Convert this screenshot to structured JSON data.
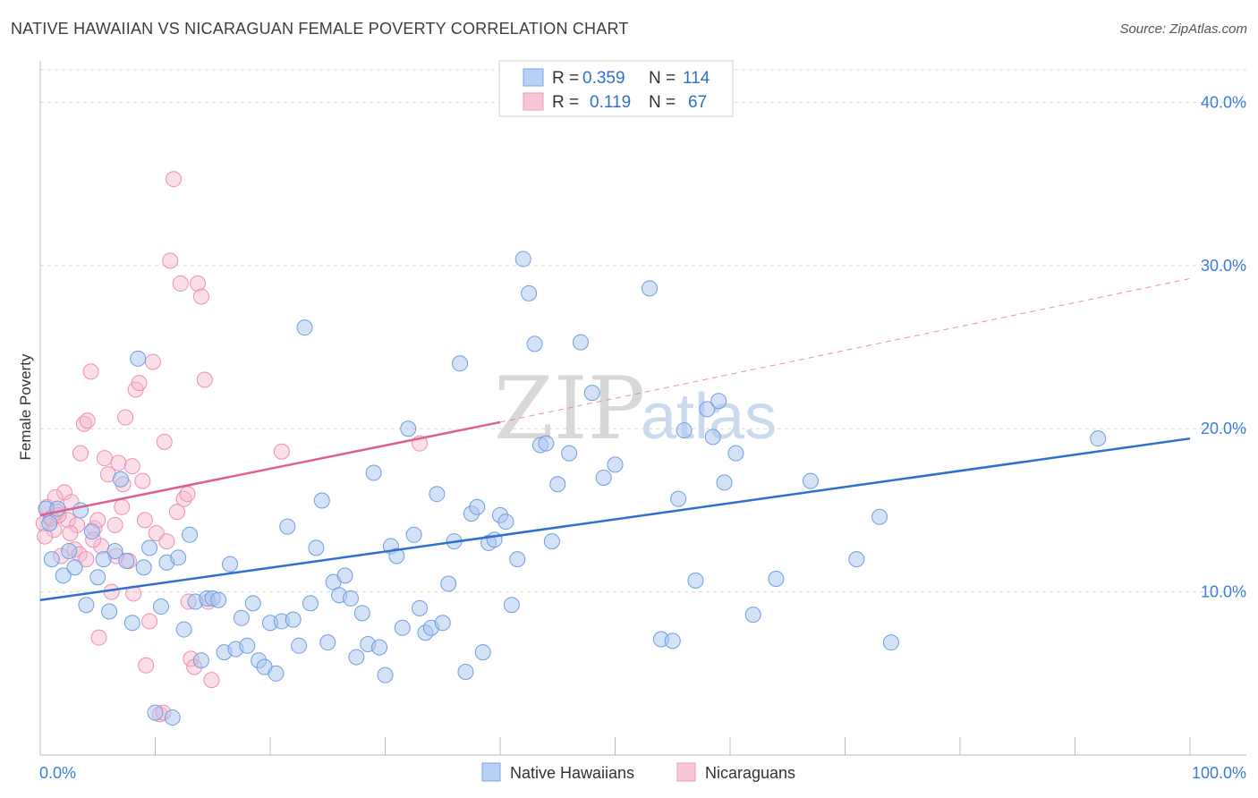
{
  "title": "NATIVE HAWAIIAN VS NICARAGUAN FEMALE POVERTY CORRELATION CHART",
  "source": "Source: ZipAtlas.com",
  "watermark": {
    "zip": "ZIP",
    "atlas": "atlas"
  },
  "colors": {
    "blue_fill": "#a9c6f0",
    "blue_stroke": "#6f9fe0",
    "blue_line": "#2f6fd0",
    "pink_fill": "#f6b8cc",
    "pink_stroke": "#ee8fb0",
    "pink_line": "#e0608a",
    "grid": "#d8d8d8",
    "axis": "#bbbbbb"
  },
  "legend": {
    "row1": {
      "r_label": "R = ",
      "r_value": "0.359",
      "n_label": "N = ",
      "n_value": "114"
    },
    "row2": {
      "r_label": "R = ",
      "r_value": "0.119",
      "n_label": "N = ",
      "n_value": "67"
    }
  },
  "bottom_legend": {
    "series1": "Native Hawaiians",
    "series2": "Nicaraguans"
  },
  "chart_data": {
    "type": "scatter",
    "title": "NATIVE HAWAIIAN VS NICARAGUAN FEMALE POVERTY CORRELATION CHART",
    "xlabel": "",
    "ylabel": "Female Poverty",
    "xlim": [
      0,
      100
    ],
    "ylim": [
      0,
      42
    ],
    "x_tick_labels": [
      "0.0%",
      "100.0%"
    ],
    "y_ticks": [
      10,
      20,
      30,
      40
    ],
    "y_tick_labels": [
      "10.0%",
      "20.0%",
      "30.0%",
      "40.0%"
    ],
    "grid": true,
    "series": [
      {
        "name": "Native Hawaiians",
        "r": 0.359,
        "n": 114,
        "trend": {
          "x0": 0,
          "y0": 9.5,
          "x1": 100,
          "y1": 19.4,
          "style": "solid"
        },
        "points": [
          [
            0.5,
            15.1
          ],
          [
            1,
            12
          ],
          [
            1.5,
            15.1
          ],
          [
            2,
            11
          ],
          [
            2.5,
            12.5
          ],
          [
            3,
            11.5
          ],
          [
            3.5,
            15
          ],
          [
            4,
            9.2
          ],
          [
            4.5,
            13.7
          ],
          [
            5,
            10.9
          ],
          [
            5.5,
            12
          ],
          [
            6,
            8.8
          ],
          [
            6.5,
            12.5
          ],
          [
            7,
            16.9
          ],
          [
            7.5,
            11.9
          ],
          [
            8,
            8.1
          ],
          [
            8.5,
            24.3
          ],
          [
            9,
            11.5
          ],
          [
            9.5,
            12.7
          ],
          [
            10,
            2.6
          ],
          [
            10.5,
            9.1
          ],
          [
            11,
            11.8
          ],
          [
            11.5,
            2.3
          ],
          [
            12,
            12.1
          ],
          [
            12.5,
            7.7
          ],
          [
            13,
            13.5
          ],
          [
            13.5,
            9.4
          ],
          [
            14,
            5.8
          ],
          [
            14.5,
            9.6
          ],
          [
            15,
            9.6
          ],
          [
            15.5,
            9.5
          ],
          [
            16,
            6.3
          ],
          [
            16.5,
            11.7
          ],
          [
            17,
            6.5
          ],
          [
            17.5,
            8.4
          ],
          [
            18,
            6.7
          ],
          [
            18.5,
            9.3
          ],
          [
            19,
            5.8
          ],
          [
            19.5,
            5.4
          ],
          [
            20,
            8.1
          ],
          [
            20.5,
            5
          ],
          [
            21,
            8.2
          ],
          [
            21.5,
            14
          ],
          [
            22,
            8.3
          ],
          [
            22.5,
            6.7
          ],
          [
            23,
            26.2
          ],
          [
            23.5,
            9.3
          ],
          [
            24,
            12.7
          ],
          [
            24.5,
            15.6
          ],
          [
            25,
            6.9
          ],
          [
            25.5,
            10.6
          ],
          [
            26,
            9.8
          ],
          [
            26.5,
            11
          ],
          [
            27,
            9.6
          ],
          [
            27.5,
            6
          ],
          [
            28,
            8.7
          ],
          [
            28.5,
            6.8
          ],
          [
            29,
            17.3
          ],
          [
            29.5,
            6.6
          ],
          [
            30,
            4.9
          ],
          [
            30.5,
            12.8
          ],
          [
            31,
            12.2
          ],
          [
            31.5,
            7.8
          ],
          [
            32,
            20
          ],
          [
            32.5,
            13.5
          ],
          [
            33,
            9
          ],
          [
            33.5,
            7.5
          ],
          [
            34,
            7.8
          ],
          [
            34.5,
            16
          ],
          [
            35,
            8.1
          ],
          [
            35.5,
            10.5
          ],
          [
            36,
            13.1
          ],
          [
            36.5,
            24
          ],
          [
            37,
            5.1
          ],
          [
            37.5,
            14.8
          ],
          [
            38,
            15.2
          ],
          [
            38.5,
            6.3
          ],
          [
            39,
            13
          ],
          [
            39.5,
            13.2
          ],
          [
            40,
            14.7
          ],
          [
            40.5,
            14.3
          ],
          [
            41,
            9.2
          ],
          [
            41.5,
            12
          ],
          [
            42,
            30.4
          ],
          [
            42.5,
            28.3
          ],
          [
            43,
            25.2
          ],
          [
            43.5,
            19
          ],
          [
            44,
            19.1
          ],
          [
            44.5,
            13.1
          ],
          [
            45,
            16.6
          ],
          [
            46,
            18.5
          ],
          [
            47,
            25.3
          ],
          [
            48,
            22.2
          ],
          [
            49,
            17
          ],
          [
            50,
            17.8
          ],
          [
            53,
            28.6
          ],
          [
            54,
            7.1
          ],
          [
            55,
            7
          ],
          [
            55.5,
            15.7
          ],
          [
            56,
            19.9
          ],
          [
            57,
            10.7
          ],
          [
            58,
            21.2
          ],
          [
            58.5,
            19.5
          ],
          [
            59,
            21.7
          ],
          [
            59.5,
            16.7
          ],
          [
            60.5,
            18.5
          ],
          [
            62,
            8.6
          ],
          [
            64,
            10.8
          ],
          [
            67,
            16.8
          ],
          [
            71,
            12
          ],
          [
            73,
            14.6
          ],
          [
            74,
            6.9
          ],
          [
            92,
            19.4
          ],
          [
            0.8,
            14.2
          ]
        ]
      },
      {
        "name": "Nicaraguans",
        "r": 0.119,
        "n": 67,
        "trend": {
          "x0": 0,
          "y0": 14.7,
          "x1": 40,
          "y1": 20.4,
          "x2": 100,
          "y2": 29.2,
          "style": "solid-then-dashed"
        },
        "points": [
          [
            0.3,
            14.2
          ],
          [
            0.6,
            15.2
          ],
          [
            0.9,
            14.5
          ],
          [
            1.2,
            13.8
          ],
          [
            1.5,
            14.9
          ],
          [
            1.8,
            12.2
          ],
          [
            2.1,
            16.1
          ],
          [
            2.4,
            14.4
          ],
          [
            2.7,
            15.5
          ],
          [
            3,
            12.6
          ],
          [
            3.2,
            14.1
          ],
          [
            3.5,
            18.5
          ],
          [
            3.8,
            20.3
          ],
          [
            4.1,
            20.5
          ],
          [
            4.4,
            23.5
          ],
          [
            4.7,
            13.9
          ],
          [
            5,
            14.4
          ],
          [
            5.3,
            12.8
          ],
          [
            5.6,
            18.2
          ],
          [
            5.9,
            17.2
          ],
          [
            6.2,
            10
          ],
          [
            6.5,
            14.1
          ],
          [
            6.8,
            17.9
          ],
          [
            7.1,
            15.2
          ],
          [
            7.4,
            20.7
          ],
          [
            7.7,
            11.9
          ],
          [
            8,
            17.7
          ],
          [
            8.3,
            22.4
          ],
          [
            8.6,
            22.8
          ],
          [
            8.9,
            16.8
          ],
          [
            9.2,
            5.5
          ],
          [
            9.5,
            8.2
          ],
          [
            9.8,
            24.1
          ],
          [
            10.1,
            13.6
          ],
          [
            10.4,
            2.5
          ],
          [
            10.7,
            2.6
          ],
          [
            11,
            13.1
          ],
          [
            11.3,
            30.3
          ],
          [
            11.6,
            35.3
          ],
          [
            11.9,
            14.9
          ],
          [
            12.2,
            28.9
          ],
          [
            12.5,
            15.7
          ],
          [
            12.8,
            16
          ],
          [
            13.1,
            5.9
          ],
          [
            13.4,
            5.4
          ],
          [
            13.7,
            28.9
          ],
          [
            14,
            28.1
          ],
          [
            14.3,
            23
          ],
          [
            14.6,
            9.4
          ],
          [
            14.9,
            4.6
          ],
          [
            1,
            14.5
          ],
          [
            1.6,
            14.7
          ],
          [
            2.6,
            13.6
          ],
          [
            3.4,
            12.3
          ],
          [
            4,
            12
          ],
          [
            4.6,
            13.2
          ],
          [
            5.1,
            7.2
          ],
          [
            6.6,
            12.2
          ],
          [
            7.2,
            16.6
          ],
          [
            8.1,
            9.9
          ],
          [
            9.1,
            14.4
          ],
          [
            10.8,
            19.2
          ],
          [
            12.9,
            9.4
          ],
          [
            21,
            18.6
          ],
          [
            33,
            19.1
          ],
          [
            0.4,
            13.4
          ],
          [
            1.3,
            15.8
          ]
        ]
      }
    ]
  }
}
